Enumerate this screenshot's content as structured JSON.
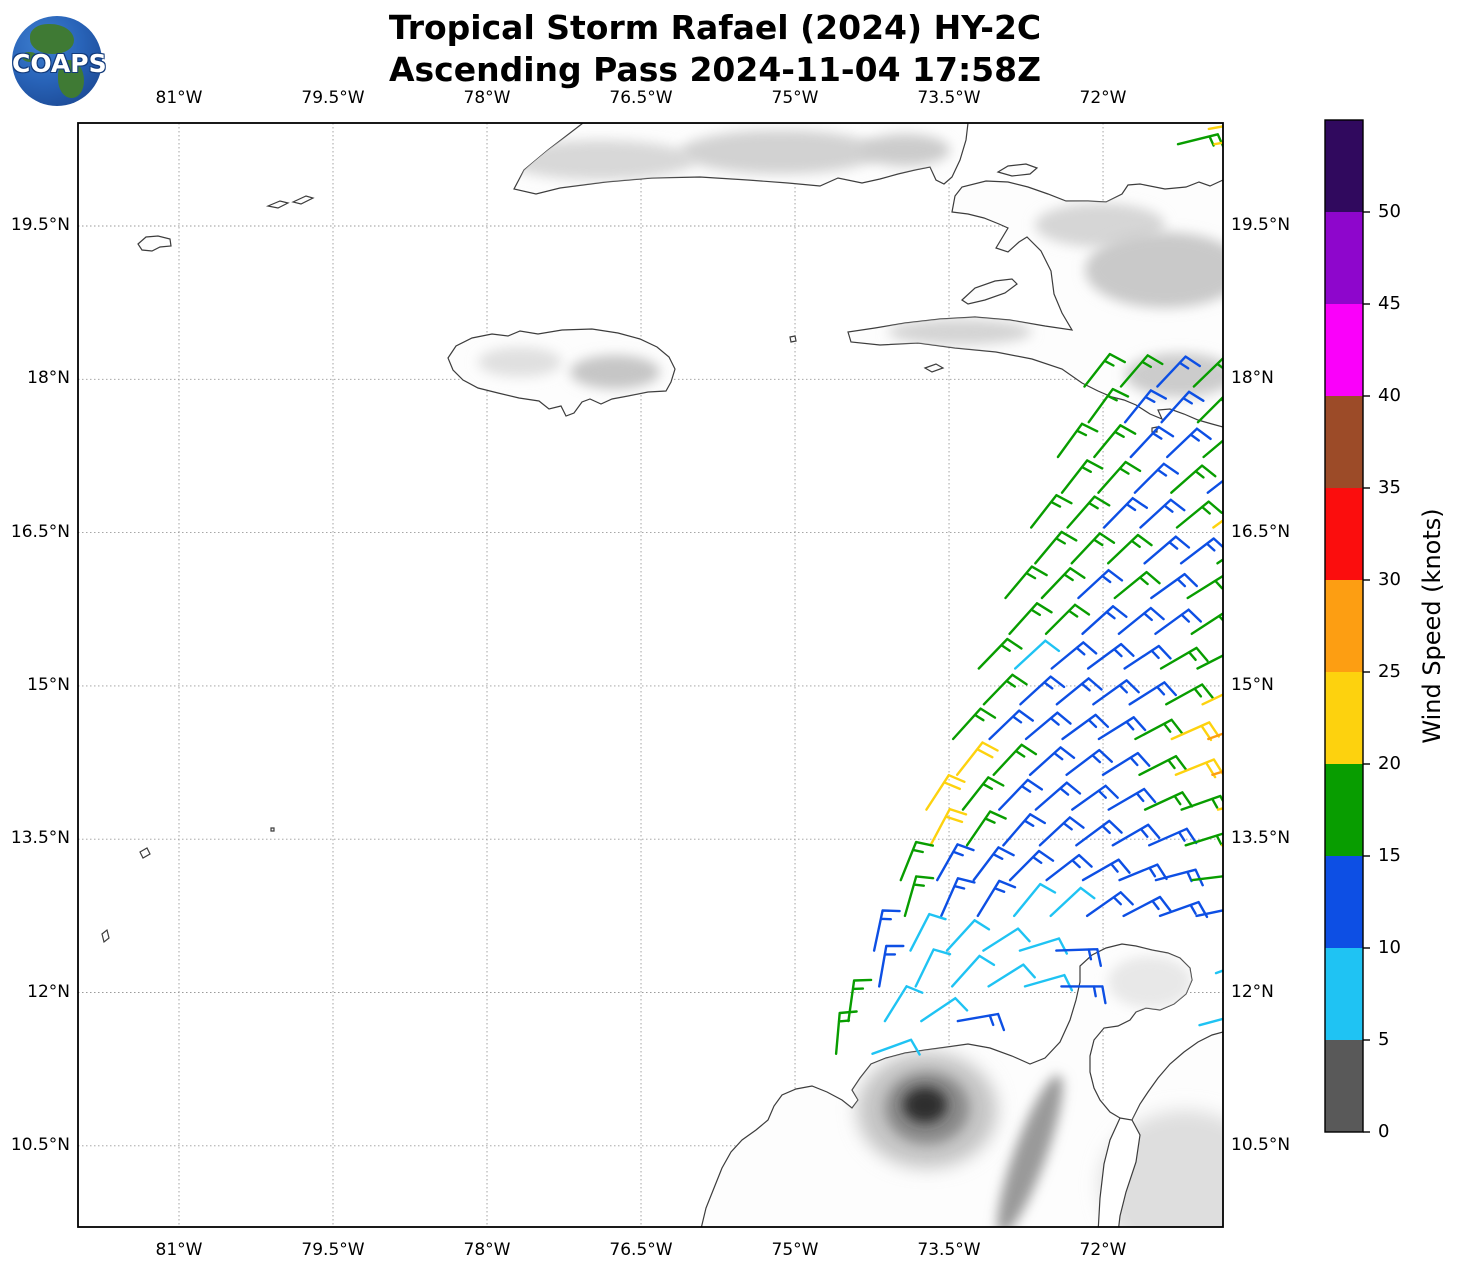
{
  "header": {
    "title_line1": "Tropical Storm Rafael (2024) HY-2C",
    "title_line2": "Ascending Pass 2024-11-04 17:58Z",
    "logo_text": "COAPS"
  },
  "map": {
    "lon_tick_labels": [
      "81°W",
      "79.5°W",
      "78°W",
      "76.5°W",
      "75°W",
      "73.5°W",
      "72°W"
    ],
    "lat_tick_labels": [
      "19.5°N",
      "18°N",
      "16.5°N",
      "15°N",
      "13.5°N",
      "12°N",
      "10.5°N"
    ]
  },
  "colorbar": {
    "label": "Wind Speed (knots)",
    "tick_values": [
      0,
      5,
      10,
      15,
      20,
      25,
      30,
      35,
      40,
      45,
      50
    ],
    "bands": [
      {
        "range": [
          0,
          5
        ],
        "color": "#595959"
      },
      {
        "range": [
          5,
          10
        ],
        "color": "#1FC3F3"
      },
      {
        "range": [
          10,
          15
        ],
        "color": "#0D4FE4"
      },
      {
        "range": [
          15,
          20
        ],
        "color": "#089D00"
      },
      {
        "range": [
          20,
          25
        ],
        "color": "#FDD20E"
      },
      {
        "range": [
          25,
          30
        ],
        "color": "#FD9E12"
      },
      {
        "range": [
          30,
          35
        ],
        "color": "#FB0D0D"
      },
      {
        "range": [
          35,
          40
        ],
        "color": "#9C4B28"
      },
      {
        "range": [
          40,
          45
        ],
        "color": "#FA00FA"
      },
      {
        "range": [
          45,
          50
        ],
        "color": "#8E06CC"
      },
      {
        "range": [
          50,
          55
        ],
        "color": "#30095E"
      }
    ]
  },
  "chart_data": {
    "type": "wind-barb-map",
    "title": "Tropical Storm Rafael (2024) HY-2C",
    "subtitle": "Ascending Pass 2024-11-04 17:58Z",
    "units": "knots",
    "extent": {
      "lon_min": -82.0,
      "lon_max": -70.83,
      "lat_min": 9.7,
      "lat_max": 20.5
    },
    "gridline_lons": [
      -81,
      -79.5,
      -78,
      -76.5,
      -75,
      -73.5,
      -72
    ],
    "gridline_lats": [
      19.5,
      18,
      16.5,
      15,
      13.5,
      12,
      10.5
    ],
    "grid_on": true,
    "colorbar_ticks": [
      0,
      5,
      10,
      15,
      20,
      25,
      30,
      35,
      40,
      45,
      50
    ],
    "speed_class_knots": {
      "C": 10,
      "B": 15,
      "G": 17,
      "Y": 22,
      "O": 27
    },
    "class_colors": {
      "C": "#1FC3F3",
      "B": "#0D4FE4",
      "G": "#089D00",
      "Y": "#FDD20E",
      "O": "#FD9E12"
    },
    "barb_lon_step_deg": 0.355,
    "barb_rows": [
      {
        "lat": 20.45,
        "lon": -70.97,
        "codes": "Y",
        "dir": [
          80,
          80
        ]
      },
      {
        "lat": 20.3,
        "lon": -71.27,
        "codes": "GY",
        "dir": [
          76,
          80
        ]
      },
      {
        "lat": 17.93,
        "lon": -72.18,
        "codes": "GGBG",
        "dir": [
          38,
          46
        ]
      },
      {
        "lat": 17.58,
        "lon": -72.14,
        "codes": "GBBGG",
        "dir": [
          36,
          48
        ]
      },
      {
        "lat": 17.24,
        "lon": -72.44,
        "codes": "GGBBG",
        "dir": [
          36,
          50
        ]
      },
      {
        "lat": 16.89,
        "lon": -72.4,
        "codes": "GGBGB",
        "dir": [
          38,
          52
        ]
      },
      {
        "lat": 16.55,
        "lon": -72.7,
        "codes": "GGBBGY",
        "dir": [
          38,
          54
        ]
      },
      {
        "lat": 16.2,
        "lon": -72.66,
        "codes": "GGGBBG",
        "dir": [
          40,
          56
        ]
      },
      {
        "lat": 15.86,
        "lon": -72.95,
        "codes": "GGBGBG",
        "dir": [
          40,
          58
        ]
      },
      {
        "lat": 15.51,
        "lon": -72.91,
        "codes": "GGBBBGG",
        "dir": [
          42,
          60
        ]
      },
      {
        "lat": 15.17,
        "lon": -73.21,
        "codes": "GCBBBGG",
        "dir": [
          44,
          63
        ]
      },
      {
        "lat": 14.82,
        "lon": -73.16,
        "codes": "GBBBBGYO",
        "dir": [
          44,
          68
        ]
      },
      {
        "lat": 14.48,
        "lon": -73.46,
        "codes": "GBBBBGYO",
        "dir": [
          42,
          70
        ]
      },
      {
        "lat": 14.13,
        "lon": -73.42,
        "codes": "YGBBBGYO",
        "dir": [
          38,
          73
        ]
      },
      {
        "lat": 13.79,
        "lon": -73.72,
        "codes": "YGBBBBGGY",
        "dir": [
          33,
          76
        ]
      },
      {
        "lat": 13.44,
        "lon": -73.68,
        "codes": "YGBBBBBGY",
        "dir": [
          28,
          79
        ]
      },
      {
        "lat": 13.1,
        "lon": -73.97,
        "codes": "GBBBBBBBG",
        "dir": [
          22,
          83
        ]
      },
      {
        "lat": 12.75,
        "lon": -73.93,
        "codes": "GBBCCBBBBB",
        "dir": [
          16,
          86
        ]
      },
      {
        "lat": 12.41,
        "lon": -74.23,
        "codes": "BCCCCB",
        "dir": [
          12,
          88
        ]
      },
      {
        "lat": 12.06,
        "lon": -74.18,
        "codes": "BCCCCB",
        "dir": [
          10,
          90
        ]
      },
      {
        "lat": 11.72,
        "lon": -74.48,
        "codes": "GCCB",
        "dir": [
          8,
          80
        ]
      },
      {
        "lat": 11.4,
        "lon": -74.6,
        "codes": "GC",
        "dir": [
          5,
          70
        ]
      }
    ],
    "isolated_barbs": [
      {
        "lat": 12.19,
        "lon": -70.9,
        "code": "C",
        "dir": 70
      },
      {
        "lat": 11.68,
        "lon": -71.06,
        "code": "C",
        "dir": 75
      }
    ]
  }
}
